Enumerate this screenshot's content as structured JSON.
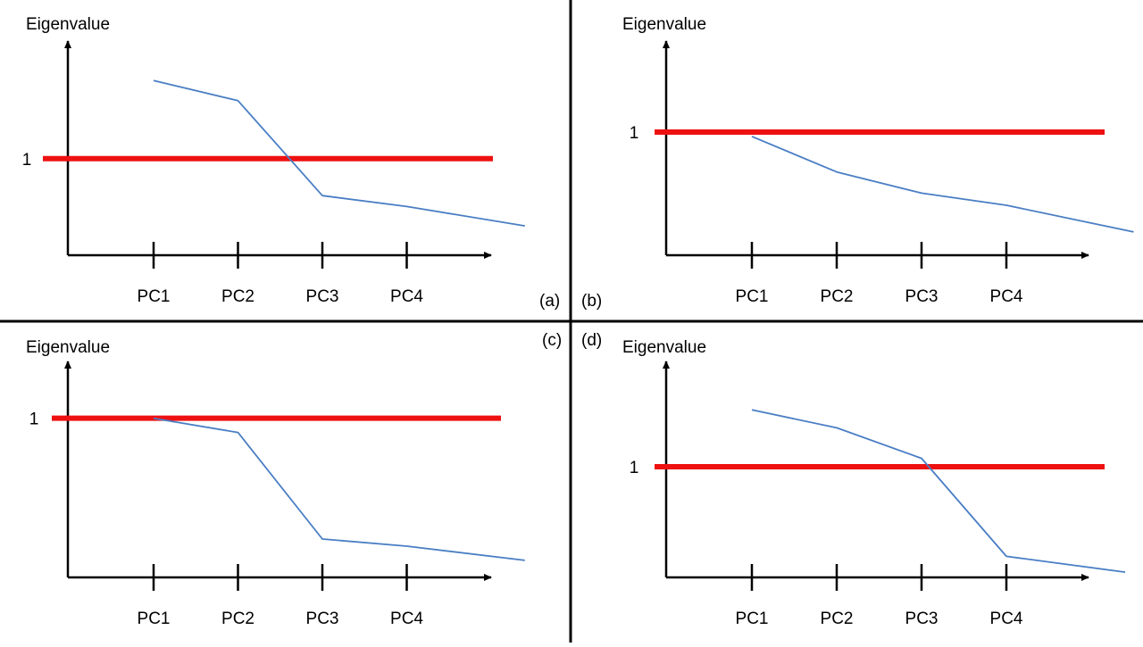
{
  "chart_data": [
    {
      "type": "line",
      "panel": "(a)",
      "ylabel": "Eigenvalue",
      "categories": [
        "PC1",
        "PC2",
        "PC3",
        "PC4"
      ],
      "threshold": {
        "value": 1,
        "label": "1",
        "color": "#ee1111"
      },
      "series": [
        {
          "color": "#4a7ec4",
          "x": [
            0,
            1,
            2,
            3,
            4.4
          ],
          "y": [
            1.93,
            1.69,
            0.56,
            0.43,
            0.2
          ]
        }
      ],
      "ylim": [
        -0.15,
        2.4
      ],
      "grid": false
    },
    {
      "type": "line",
      "panel": "(b)",
      "ylabel": "Eigenvalue",
      "categories": [
        "PC1",
        "PC2",
        "PC3",
        "PC4"
      ],
      "threshold": {
        "value": 1,
        "label": "1",
        "color": "#ee1111"
      },
      "series": [
        {
          "color": "#4a7ec4",
          "x": [
            0,
            1,
            2,
            3,
            4.5
          ],
          "y": [
            0.96,
            0.64,
            0.45,
            0.34,
            0.1
          ]
        }
      ],
      "ylim": [
        -0.11,
        1.82
      ],
      "grid": false
    },
    {
      "type": "line",
      "panel": "(c)",
      "ylabel": "Eigenvalue",
      "categories": [
        "PC1",
        "PC2",
        "PC3",
        "PC4"
      ],
      "threshold": {
        "value": 1,
        "label": "1",
        "color": "#ee1111"
      },
      "series": [
        {
          "color": "#4a7ec4",
          "x": [
            0,
            1,
            2,
            3,
            4.4
          ],
          "y": [
            1.0,
            0.9,
            0.15,
            0.1,
            0.0
          ]
        }
      ],
      "ylim": [
        -0.12,
        1.4
      ],
      "grid": false
    },
    {
      "type": "line",
      "panel": "(d)",
      "ylabel": "Eigenvalue",
      "categories": [
        "PC1",
        "PC2",
        "PC3",
        "PC4"
      ],
      "threshold": {
        "value": 1,
        "label": "1",
        "color": "#ee1111"
      },
      "series": [
        {
          "color": "#4a7ec4",
          "x": [
            0,
            1,
            2,
            3,
            4.4
          ],
          "y": [
            1.54,
            1.37,
            1.08,
            0.15,
            0.0
          ]
        }
      ],
      "ylim": [
        -0.05,
        2.0
      ],
      "grid": false
    }
  ]
}
